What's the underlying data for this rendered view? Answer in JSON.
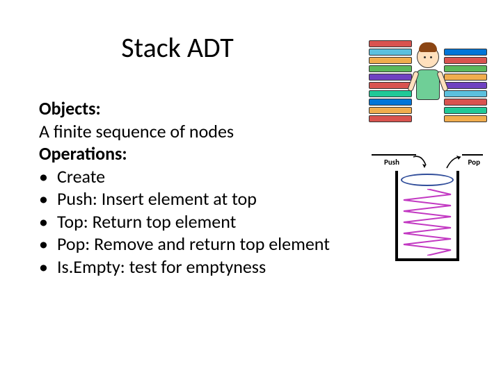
{
  "title": "Stack ADT",
  "sections": {
    "objects_label": "Objects:",
    "objects_desc": " A finite sequence of nodes",
    "operations_label": "Operations:",
    "ops": [
      "Create",
      "Push: Insert element at top",
      "Top: Return top element",
      "Pop: Remove and return top element",
      "Is.Empty: test for emptyness"
    ]
  },
  "cartoon": {
    "book_colors_left": [
      "#d9534f",
      "#5bc0de",
      "#f0ad4e",
      "#5cb85c",
      "#6f42c1",
      "#d9534f",
      "#20c997",
      "#0275d8",
      "#f0ad4e",
      "#d9534f"
    ],
    "book_colors_right": [
      "#0275d8",
      "#d9534f",
      "#5cb85c",
      "#f0ad4e",
      "#6f42c1",
      "#5bc0de",
      "#d9534f",
      "#20c997",
      "#f0ad4e"
    ]
  },
  "diagram": {
    "push_label": "Push",
    "pop_label": "Pop",
    "spring_color": "#c238c2",
    "plate_border": "#304d9a",
    "cup_color": "#000000",
    "arrow_color": "#000000"
  },
  "colors": {
    "text": "#000000",
    "background": "#ffffff"
  }
}
